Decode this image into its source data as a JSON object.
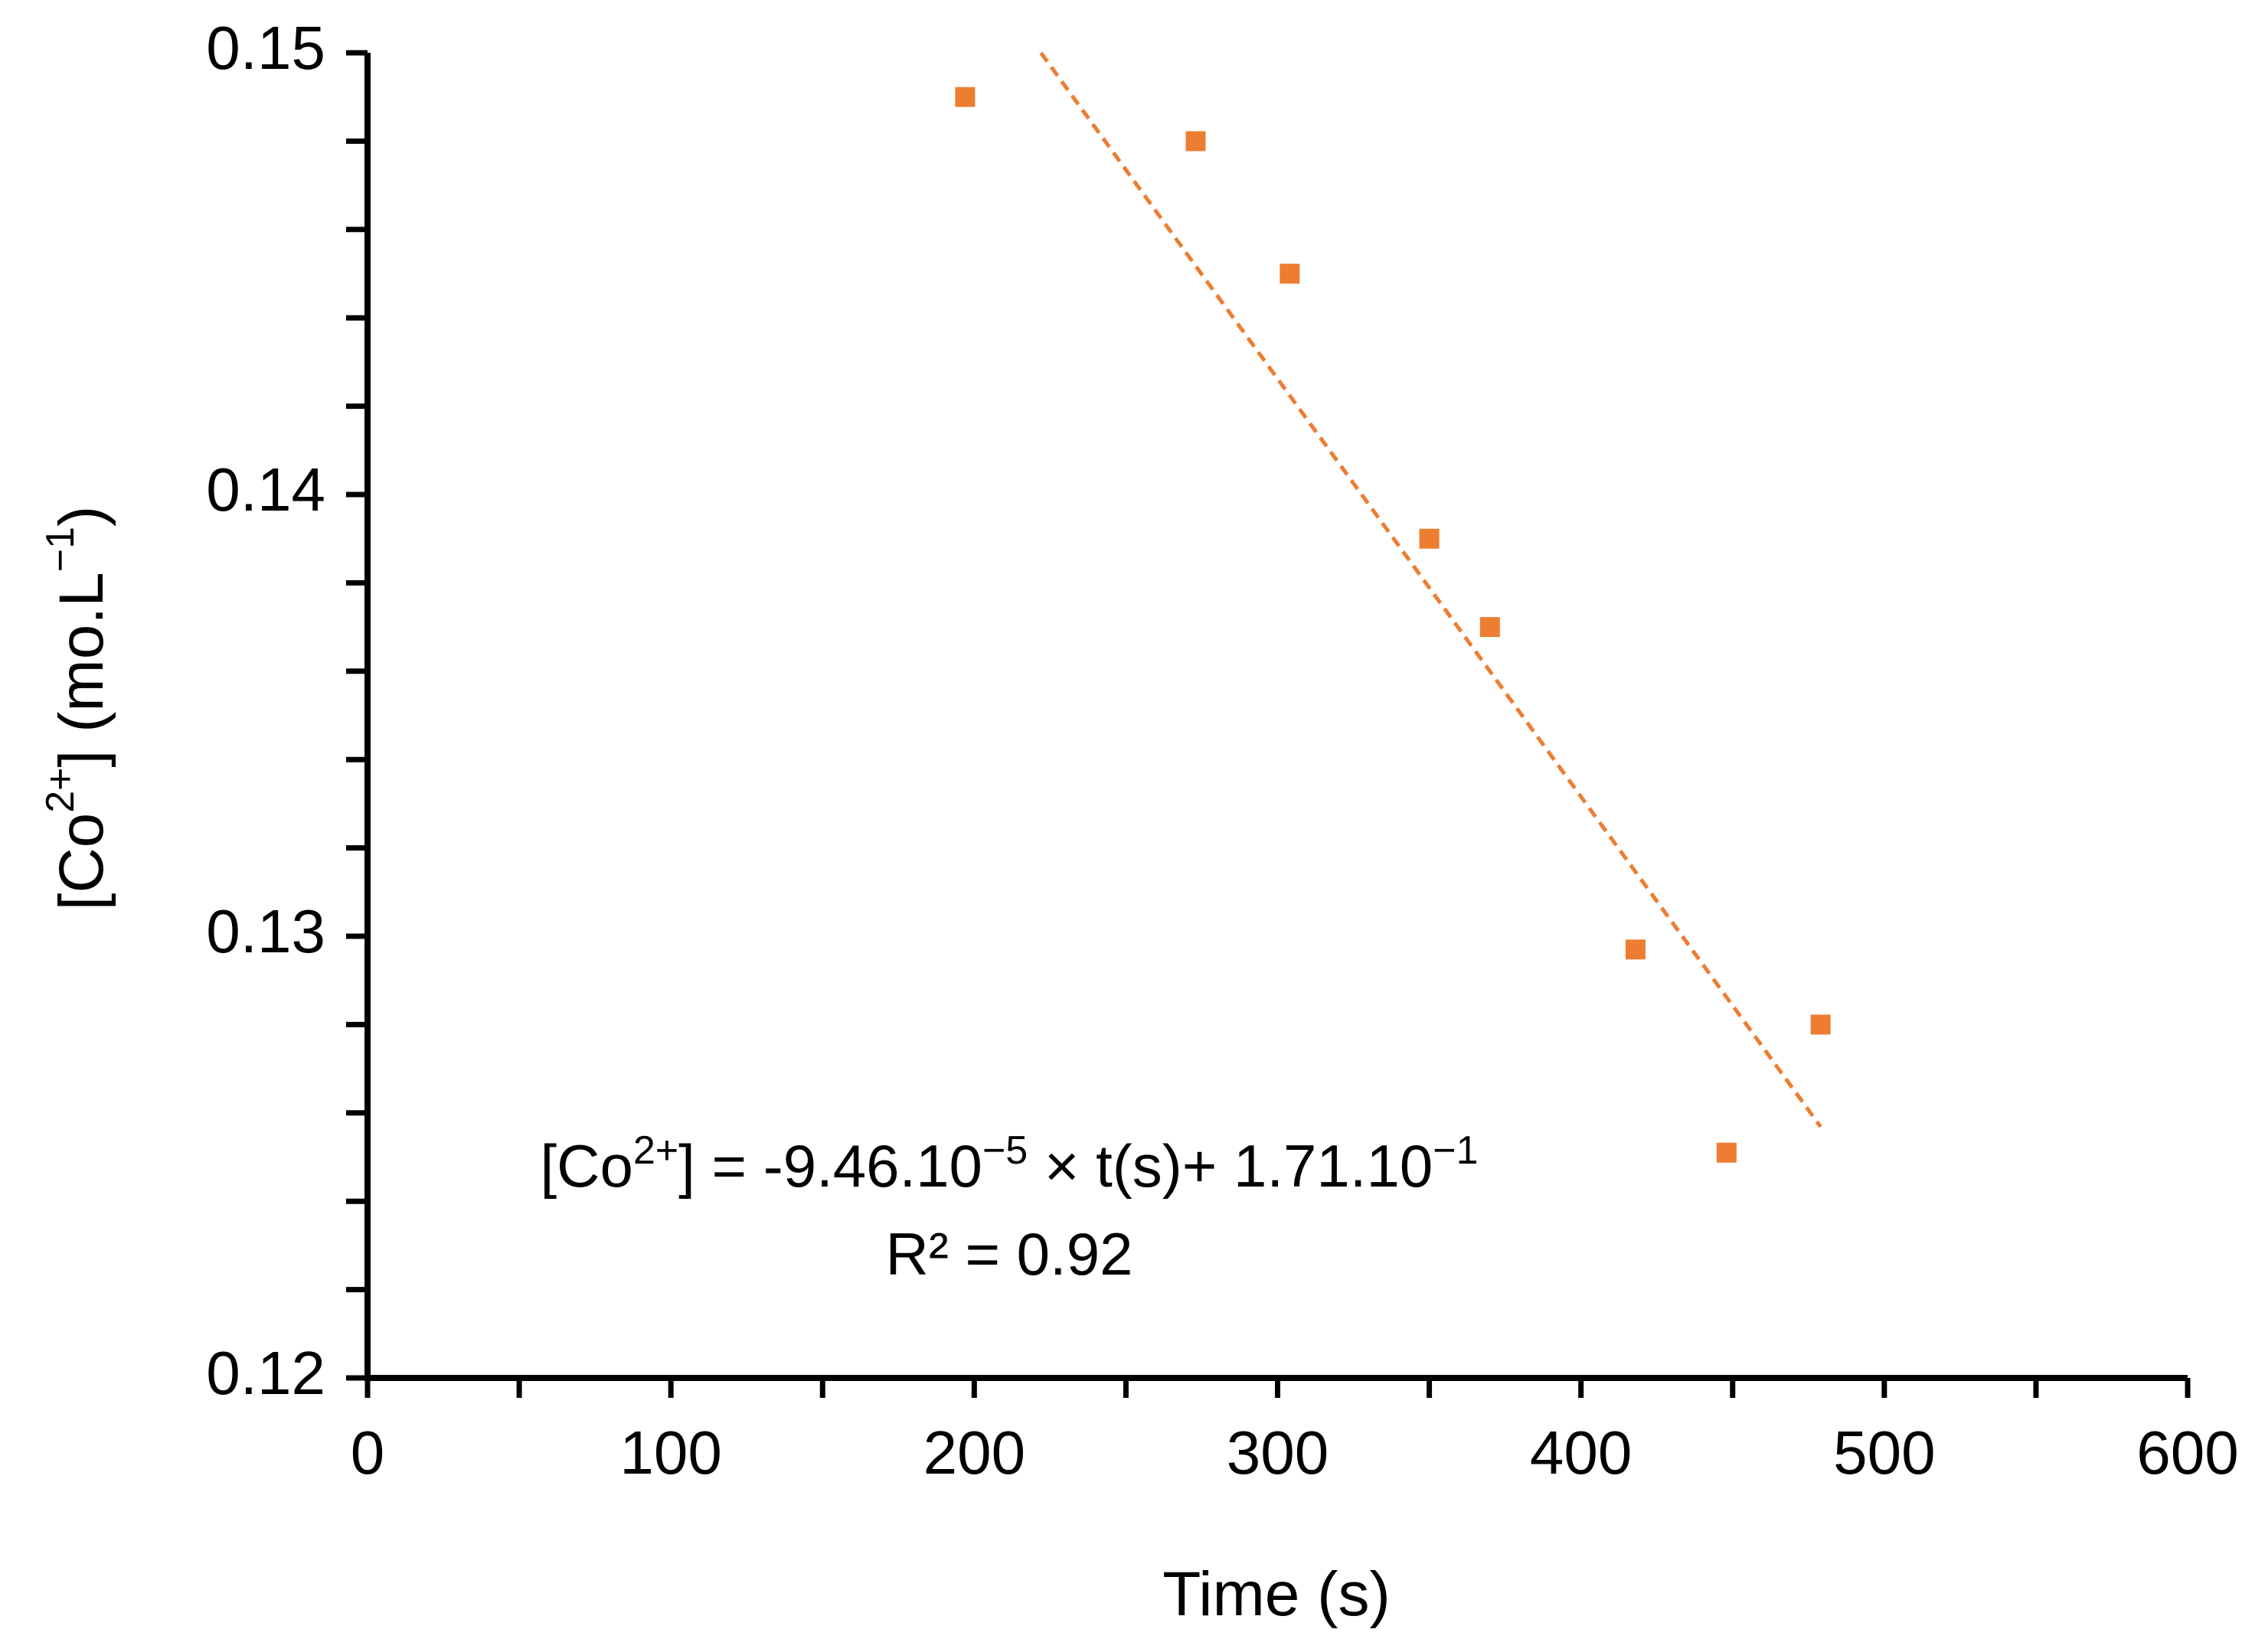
{
  "chart_data": {
    "type": "scatter",
    "title": "",
    "xlabel": "Time (s)",
    "ylabel_parts": [
      "[Co",
      "2+",
      "] (mo.L",
      "−1",
      ")"
    ],
    "xlim": [
      0,
      600
    ],
    "ylim": [
      0.12,
      0.15
    ],
    "x_major_ticks": [
      0,
      100,
      200,
      300,
      400,
      500,
      600
    ],
    "x_tick_labels": [
      "0",
      "100",
      "200",
      "300",
      "400",
      "500",
      "600"
    ],
    "x_minor_step": 50,
    "y_major_ticks": [
      0.12,
      0.13,
      0.14,
      0.15
    ],
    "y_tick_labels": [
      "0.12",
      "0.13",
      "0.14",
      "0.15"
    ],
    "y_minor_step": 0.002,
    "grid": false,
    "series": [
      {
        "name": "[Co2+]",
        "marker": "square",
        "color": "#ED7D31",
        "x": [
          197,
          273,
          304,
          350,
          370,
          418,
          448,
          479
        ],
        "y": [
          0.149,
          0.148,
          0.145,
          0.139,
          0.137,
          0.1297,
          0.1251,
          0.128
        ]
      }
    ],
    "trendline": {
      "type": "linear",
      "style": "dashed",
      "color": "#ED7D31",
      "x_range": [
        222,
        479
      ]
    },
    "equation_parts": {
      "a": "[Co",
      "a_sup": "2+",
      "b": "] = -9.46.10",
      "b_sup": "−5",
      "c": " × t(s)+ 1.71.10",
      "c_sup": "−1"
    },
    "r_squared_label": "R² = 0.92",
    "slope": -9.46e-05,
    "intercept": 0.171
  }
}
